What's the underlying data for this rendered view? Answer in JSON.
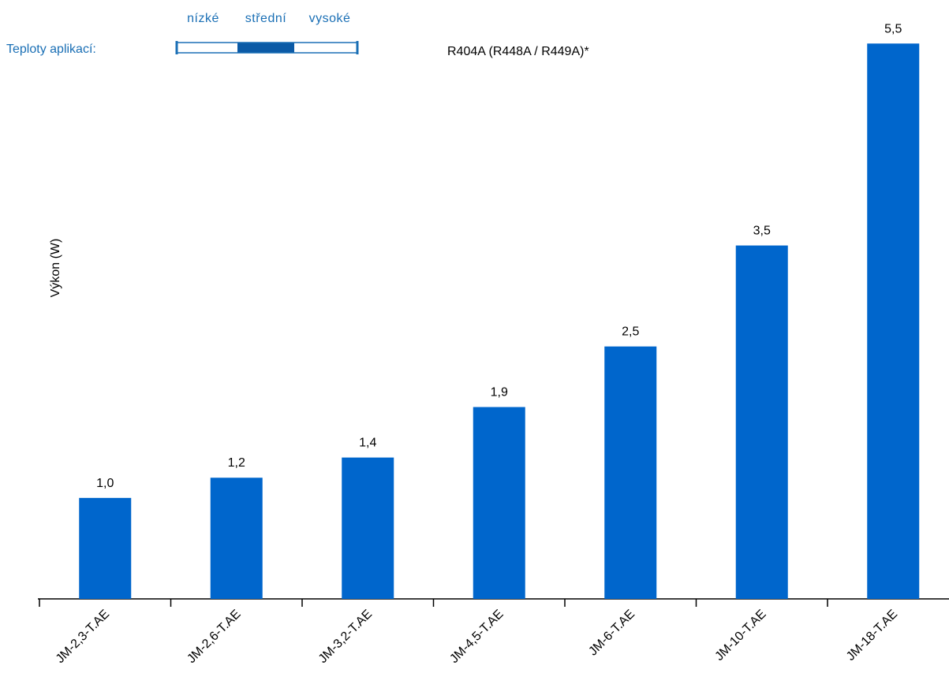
{
  "chart_data": {
    "type": "bar",
    "subtitle": "R404A (R448A / R449A)*",
    "y_label": "Výkon (W)",
    "legend": {
      "title": "Teploty aplikací:",
      "levels": [
        "nízké",
        "střední",
        "vysoké"
      ],
      "active": 1,
      "color": "#0b5aa6"
    },
    "categories": [
      "JM-2,3-T.AE",
      "JM-2,6-T.AE",
      "JM-3,2-T.AE",
      "JM-4,5-T.AE",
      "JM-6-T.AE",
      "JM-10-T.AE",
      "JM-18-T.AE"
    ],
    "values": [
      1.0,
      1.2,
      1.4,
      1.9,
      2.5,
      3.5,
      5.5
    ],
    "value_labels": [
      "1,0",
      "1,2",
      "1,4",
      "1,9",
      "2,5",
      "3,5",
      "5,5"
    ],
    "color": "#0066cc",
    "ylim": [
      0,
      5.9
    ]
  }
}
